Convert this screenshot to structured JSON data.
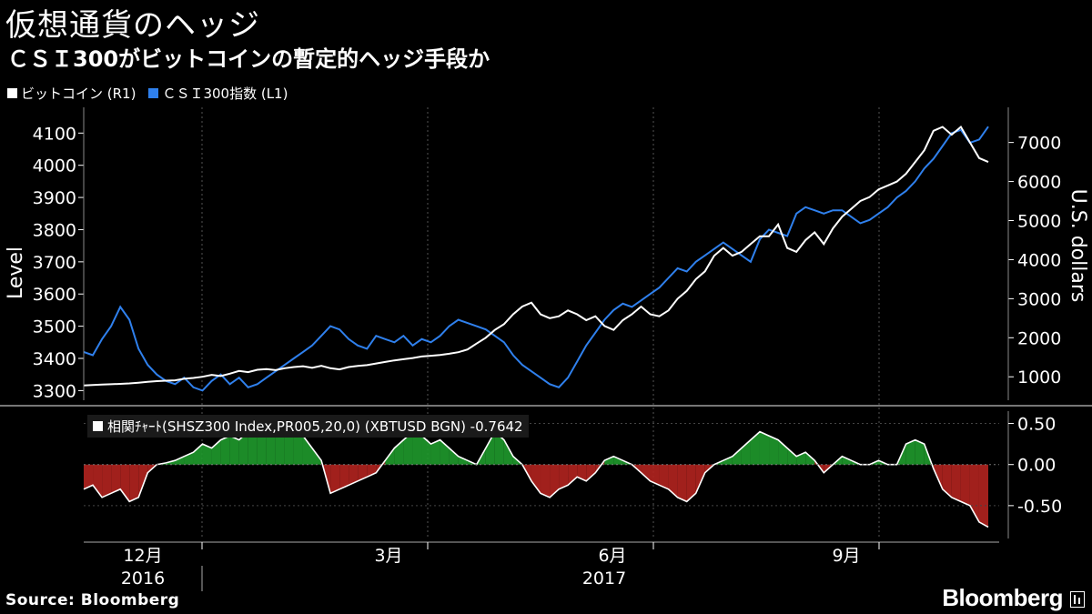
{
  "title": "仮想通貨のヘッジ",
  "subtitle": "ＣＳＩ300がビットコインの暫定的ヘッジ手段か",
  "legend": [
    {
      "label": "ビットコイン (R1)",
      "color": "#ffffff"
    },
    {
      "label": "ＣＳＩ300指数 (L1)",
      "color": "#2f80ed"
    }
  ],
  "source": "Source: Bloomberg",
  "brand": "Bloomberg",
  "chart_data": [
    {
      "type": "line",
      "left_axis_label": "Level",
      "right_axis_label": "U.S. dollars",
      "left_ticks": [
        "4100",
        "4000",
        "3900",
        "3800",
        "3700",
        "3600",
        "3500",
        "3400",
        "3300"
      ],
      "right_ticks": [
        "7000",
        "6000",
        "5000",
        "4000",
        "3000",
        "2000",
        "1000"
      ],
      "left_ylim": [
        3270,
        4180
      ],
      "right_ylim": [
        400,
        7900
      ],
      "series": [
        {
          "name": "ＣＳＩ300指数 (L1)",
          "axis": "left",
          "color": "#2f80ed",
          "values": [
            3420,
            3410,
            3460,
            3500,
            3560,
            3520,
            3430,
            3380,
            3350,
            3330,
            3320,
            3340,
            3310,
            3300,
            3330,
            3350,
            3320,
            3340,
            3310,
            3320,
            3340,
            3360,
            3380,
            3400,
            3420,
            3440,
            3470,
            3500,
            3490,
            3460,
            3440,
            3430,
            3470,
            3460,
            3450,
            3470,
            3440,
            3460,
            3450,
            3470,
            3500,
            3520,
            3510,
            3500,
            3490,
            3470,
            3450,
            3410,
            3380,
            3360,
            3340,
            3320,
            3310,
            3340,
            3390,
            3440,
            3480,
            3520,
            3550,
            3570,
            3560,
            3580,
            3600,
            3620,
            3650,
            3680,
            3670,
            3700,
            3720,
            3740,
            3760,
            3740,
            3720,
            3700,
            3770,
            3800,
            3790,
            3780,
            3850,
            3870,
            3860,
            3850,
            3860,
            3860,
            3840,
            3820,
            3830,
            3850,
            3870,
            3900,
            3920,
            3950,
            3990,
            4020,
            4060,
            4100,
            4110,
            4070,
            4080,
            4120
          ]
        },
        {
          "name": "ビットコイン (R1)",
          "axis": "right",
          "color": "#ffffff",
          "values": [
            780,
            790,
            800,
            810,
            820,
            830,
            850,
            870,
            890,
            900,
            910,
            950,
            970,
            1000,
            1050,
            1020,
            1080,
            1150,
            1120,
            1180,
            1200,
            1170,
            1220,
            1250,
            1270,
            1230,
            1280,
            1220,
            1190,
            1250,
            1280,
            1300,
            1340,
            1380,
            1420,
            1450,
            1480,
            1520,
            1540,
            1560,
            1590,
            1630,
            1700,
            1850,
            2000,
            2200,
            2350,
            2600,
            2800,
            2900,
            2600,
            2500,
            2550,
            2700,
            2600,
            2450,
            2550,
            2300,
            2200,
            2450,
            2600,
            2800,
            2600,
            2550,
            2700,
            3000,
            3200,
            3500,
            3700,
            4100,
            4300,
            4100,
            4200,
            4400,
            4600,
            4600,
            4900,
            4300,
            4200,
            4500,
            4700,
            4400,
            4800,
            5100,
            5300,
            5500,
            5600,
            5800,
            5900,
            6000,
            6200,
            6500,
            6800,
            7300,
            7400,
            7200,
            7400,
            7000,
            6600,
            6500
          ]
        }
      ],
      "x_tick_labels": [
        "12月",
        "3月",
        "6月",
        "9月"
      ],
      "year_labels": [
        "2016",
        "2017"
      ]
    },
    {
      "type": "area",
      "label": "相関ﾁｬｰﾄ(SHSZ300 Index,PR005,20,0) (XBTUSD BGN) -0.7642",
      "right_ticks": [
        "0.50",
        "0.00",
        "-0.50"
      ],
      "ylim": [
        -0.9,
        0.65
      ],
      "positive_color": "#1f9a2c",
      "negative_color": "#b3231f",
      "values": [
        -0.3,
        -0.25,
        -0.4,
        -0.35,
        -0.3,
        -0.45,
        -0.4,
        -0.1,
        0.0,
        0.02,
        0.05,
        0.1,
        0.15,
        0.25,
        0.2,
        0.3,
        0.35,
        0.3,
        0.4,
        0.45,
        0.35,
        0.5,
        0.45,
        0.4,
        0.35,
        0.2,
        0.05,
        -0.35,
        -0.3,
        -0.25,
        -0.2,
        -0.15,
        -0.1,
        0.05,
        0.2,
        0.3,
        0.4,
        0.35,
        0.25,
        0.3,
        0.2,
        0.1,
        0.05,
        0.0,
        0.2,
        0.4,
        0.3,
        0.1,
        0.0,
        -0.2,
        -0.35,
        -0.4,
        -0.3,
        -0.25,
        -0.15,
        -0.2,
        -0.1,
        0.05,
        0.1,
        0.05,
        0.0,
        -0.1,
        -0.2,
        -0.25,
        -0.3,
        -0.4,
        -0.45,
        -0.35,
        -0.1,
        0.0,
        0.05,
        0.1,
        0.2,
        0.3,
        0.4,
        0.35,
        0.3,
        0.2,
        0.1,
        0.15,
        0.05,
        -0.1,
        0.0,
        0.1,
        0.05,
        0.0,
        0.0,
        0.05,
        0.0,
        0.0,
        0.25,
        0.3,
        0.25,
        -0.05,
        -0.3,
        -0.4,
        -0.45,
        -0.5,
        -0.7,
        -0.76
      ]
    }
  ]
}
